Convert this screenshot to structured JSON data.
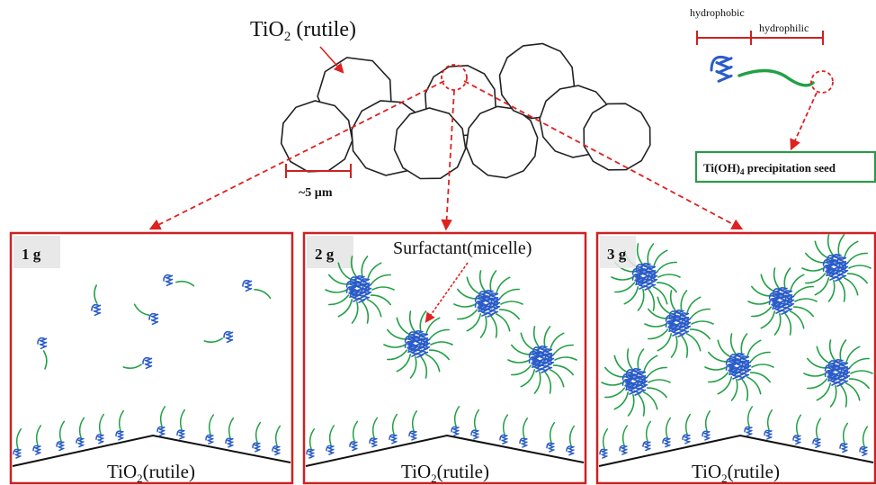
{
  "top": {
    "title_main": "TiO",
    "title_sub": "2",
    "title_rest": " (rutile)",
    "scale_label": "~5 µm"
  },
  "molecule": {
    "hydrophobic_label": "hydrophobic",
    "hydrophilic_label": "hydrophilic",
    "seed_main": "Ti(OH)",
    "seed_sub": "4",
    "seed_rest": " precipitation seed"
  },
  "panels": [
    {
      "tag": "1 g",
      "base_main": "TiO",
      "base_sub": "2",
      "base_rest": "(rutile)"
    },
    {
      "tag": "2 g",
      "base_main": "TiO",
      "base_sub": "2",
      "base_rest": "(rutile)",
      "annotation": "Surfactant(micelle)"
    },
    {
      "tag": "3 g",
      "base_main": "TiO",
      "base_sub": "2",
      "base_rest": "(rutile)"
    }
  ],
  "colors": {
    "frame": "#cc2222",
    "arrow": "#dd2222",
    "tail": "#22a045",
    "head": "#2a5cc8",
    "seed_box": "#2a9a4a"
  }
}
